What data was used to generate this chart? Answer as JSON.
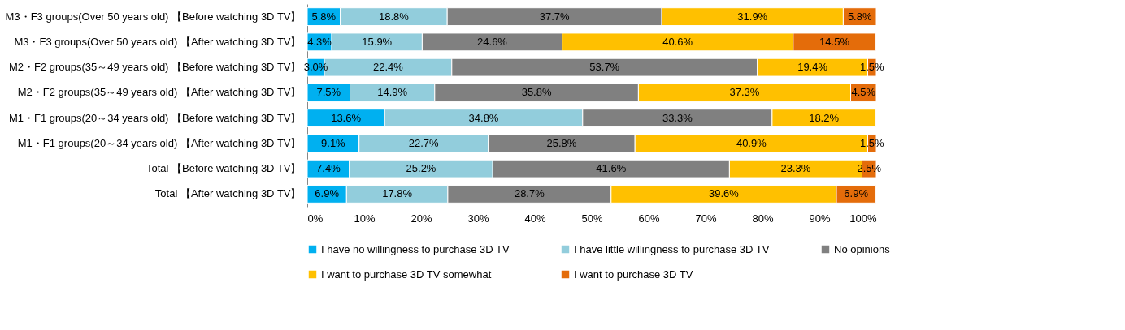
{
  "chart_data": {
    "type": "bar",
    "orientation": "horizontal",
    "stacked": true,
    "categories": [
      "M3・F3 groups(Over 50 years old) 【Before watching 3D TV】",
      "M3・F3 groups(Over 50 years old) 【After watching 3D TV】",
      "M2・F2 groups(35～49 years old) 【Before watching 3D TV】",
      "M2・F2 groups(35～49 years old) 【After watching 3D TV】",
      "M1・F1 groups(20～34 years old) 【Before watching 3D TV】",
      "M1・F1 groups(20～34 years old) 【After watching 3D TV】",
      "Total 【Before watching 3D TV】",
      "Total 【After watching 3D TV】"
    ],
    "series": [
      {
        "name": "I have no willingness to purchase 3D TV",
        "color": "#00b0f0",
        "values": [
          5.8,
          4.3,
          3.0,
          7.5,
          13.6,
          9.1,
          7.4,
          6.9
        ],
        "value_labels": [
          "5.8%",
          "4.3%",
          "3.0%",
          "7.5%",
          "13.6%",
          "9.1%",
          "7.4%",
          "6.9%"
        ]
      },
      {
        "name": "I have little willingness to purchase 3D TV",
        "color": "#92cddc",
        "values": [
          18.8,
          15.9,
          22.4,
          14.9,
          34.8,
          22.7,
          25.2,
          17.8
        ],
        "value_labels": [
          "18.8%",
          "15.9%",
          "22.4%",
          "14.9%",
          "34.8%",
          "22.7%",
          "25.2%",
          "17.8%"
        ]
      },
      {
        "name": "No opinions",
        "color": "#808080",
        "values": [
          37.7,
          24.6,
          53.7,
          35.8,
          33.3,
          25.8,
          41.6,
          28.7
        ],
        "value_labels": [
          "37.7%",
          "24.6%",
          "53.7%",
          "35.8%",
          "33.3%",
          "25.8%",
          "41.6%",
          "28.7%"
        ]
      },
      {
        "name": "I want to purchase 3D TV somewhat",
        "color": "#ffc000",
        "values": [
          31.9,
          40.6,
          19.4,
          37.3,
          18.2,
          40.9,
          23.3,
          39.6
        ],
        "value_labels": [
          "31.9%",
          "40.6%",
          "19.4%",
          "37.3%",
          "18.2%",
          "40.9%",
          "23.3%",
          "39.6%"
        ]
      },
      {
        "name": "I want to purchase 3D TV",
        "color": "#e46c0a",
        "values": [
          5.8,
          14.5,
          1.5,
          4.5,
          null,
          1.5,
          2.5,
          6.9
        ],
        "value_labels": [
          "5.8%",
          "14.5%",
          "1.5%",
          "4.5%",
          null,
          "1.5%",
          "2.5%",
          "6.9%"
        ]
      }
    ],
    "xlim": [
      0,
      100
    ],
    "xticks": [
      {
        "value": 0,
        "label": "0%"
      },
      {
        "value": 10,
        "label": "10%"
      },
      {
        "value": 20,
        "label": "20%"
      },
      {
        "value": 30,
        "label": "30%"
      },
      {
        "value": 40,
        "label": "40%"
      },
      {
        "value": 50,
        "label": "50%"
      },
      {
        "value": 60,
        "label": "60%"
      },
      {
        "value": 70,
        "label": "70%"
      },
      {
        "value": 80,
        "label": "80%"
      },
      {
        "value": 90,
        "label": "90%"
      },
      {
        "value": 100,
        "label": "100%"
      }
    ],
    "legend": "bottom",
    "grid": false
  }
}
